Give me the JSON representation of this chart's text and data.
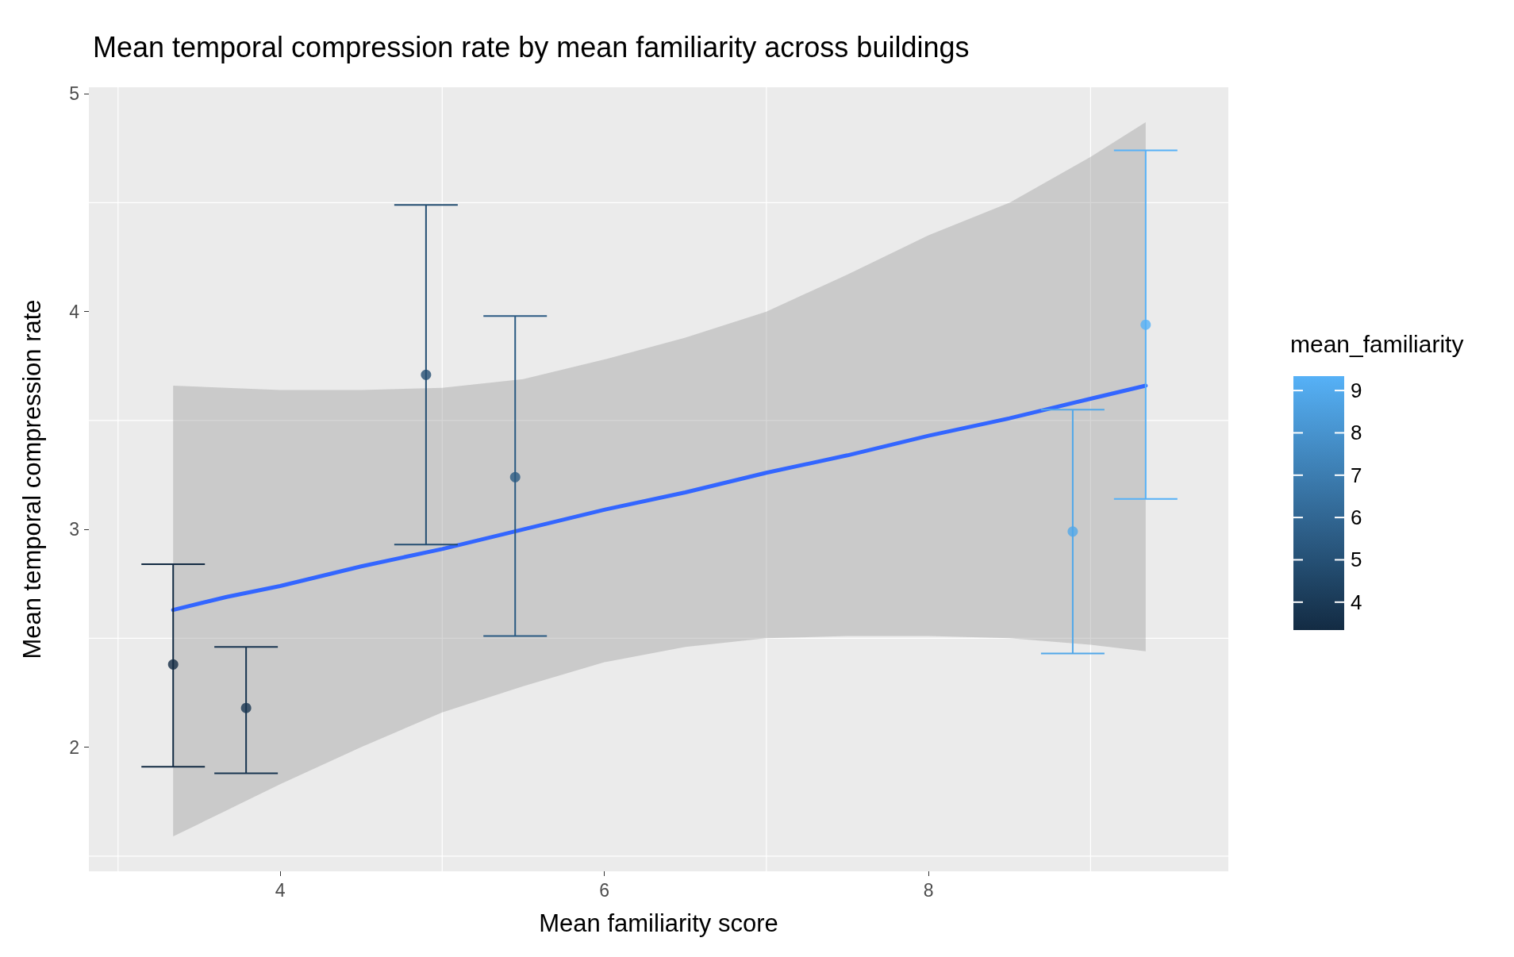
{
  "chart_data": {
    "type": "scatter",
    "title": "Mean temporal compression rate by mean familiarity across buildings",
    "xlabel": "Mean familiarity score",
    "ylabel": "Mean temporal compression rate",
    "clabel": "mean_familiarity",
    "xlim": [
      2.82,
      9.85
    ],
    "xticks": [
      {
        "value": 3,
        "label": null
      },
      4,
      {
        "value": 5,
        "label": null
      },
      6,
      {
        "value": 7,
        "label": null
      },
      8,
      {
        "value": 9,
        "label": null
      }
    ],
    "ylim": [
      1.43,
      5.03
    ],
    "yticks": [
      {
        "value": 1.5,
        "label": null
      },
      2,
      {
        "value": 2.5,
        "label": null
      },
      3,
      {
        "value": 3.5,
        "label": null
      },
      4,
      {
        "value": 4.5,
        "label": null
      },
      5
    ],
    "clim": [
      3.34,
      9.34
    ],
    "cticks": [
      4,
      5,
      6,
      7,
      8,
      9
    ],
    "grid": true,
    "marker": "circle",
    "series": [
      {
        "type": "scatter",
        "x": [
          3.34,
          3.79,
          4.9,
          5.45,
          8.89,
          9.34
        ],
        "values": [
          2.38,
          2.18,
          3.71,
          3.24,
          2.99,
          3.94
        ],
        "errors": [
          [
            1.91,
            2.84
          ],
          [
            1.88,
            2.46
          ],
          [
            2.93,
            4.49
          ],
          [
            2.51,
            3.98
          ],
          [
            2.43,
            3.55
          ],
          [
            3.14,
            4.74
          ]
        ],
        "cvalues": [
          3.34,
          3.79,
          4.9,
          5.45,
          8.89,
          9.34
        ],
        "colors": [
          "#132b43",
          "#183550",
          "#244e72",
          "#2b5a82",
          "#51a7e9",
          "#56b1f7"
        ]
      },
      {
        "type": "line",
        "color": "#3366ff",
        "line_style": "solid",
        "marker": "none",
        "x": [
          3.34,
          3.67,
          4,
          4.5,
          5,
          5.5,
          6,
          6.5,
          7,
          7.5,
          8,
          8.5,
          9,
          9.34
        ],
        "values": [
          2.63,
          2.69,
          2.74,
          2.83,
          2.91,
          3.0,
          3.09,
          3.17,
          3.26,
          3.34,
          3.43,
          3.51,
          3.6,
          3.66
        ],
        "lower": [
          1.59,
          1.71,
          1.83,
          2.0,
          2.16,
          2.28,
          2.39,
          2.46,
          2.5,
          2.51,
          2.51,
          2.5,
          2.47,
          2.44
        ],
        "upper": [
          3.66,
          3.65,
          3.64,
          3.64,
          3.65,
          3.69,
          3.78,
          3.88,
          4.0,
          4.17,
          4.35,
          4.5,
          4.71,
          4.87
        ]
      }
    ]
  }
}
